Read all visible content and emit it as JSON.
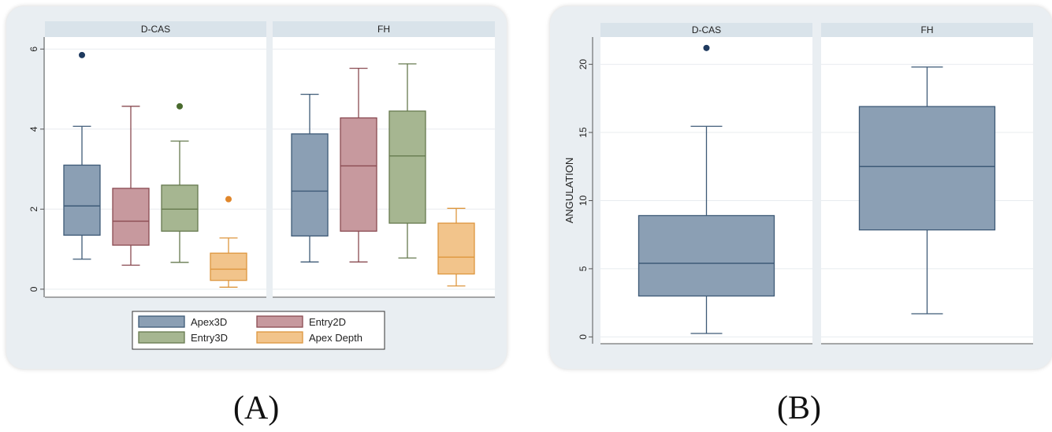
{
  "figure_captions": {
    "a": "(A)",
    "b": "(B)"
  },
  "chart_data": [
    {
      "type": "boxplot",
      "panel": "A",
      "facets": [
        "D-CAS",
        "FH"
      ],
      "ylabel": "",
      "ylim": [
        -0.2,
        6.3
      ],
      "yticks": [
        0,
        2,
        4,
        6
      ],
      "grid": true,
      "legend_position": "bottom",
      "series": [
        {
          "name": "Apex3D",
          "color": "#8b9fb4",
          "stroke": "#3e5a77",
          "outlier_color": "#1f3a5f"
        },
        {
          "name": "Entry2D",
          "color": "#c7999e",
          "stroke": "#8a4b52",
          "outlier_color": "#8a4b52"
        },
        {
          "name": "Entry3D",
          "color": "#a6b691",
          "stroke": "#667a4f",
          "outlier_color": "#4a6b2e"
        },
        {
          "name": "Apex Depth",
          "color": "#f2c48b",
          "stroke": "#dd963e",
          "outlier_color": "#e0862a"
        }
      ],
      "boxes": [
        {
          "facet": "D-CAS",
          "series": "Apex3D",
          "min": 0.75,
          "q1": 1.35,
          "median": 2.08,
          "q3": 3.1,
          "max": 4.07,
          "outliers": [
            5.85
          ]
        },
        {
          "facet": "D-CAS",
          "series": "Entry2D",
          "min": 0.6,
          "q1": 1.1,
          "median": 1.7,
          "q3": 2.52,
          "max": 4.57,
          "outliers": []
        },
        {
          "facet": "D-CAS",
          "series": "Entry3D",
          "min": 0.67,
          "q1": 1.45,
          "median": 2.0,
          "q3": 2.6,
          "max": 3.7,
          "outliers": [
            4.57
          ]
        },
        {
          "facet": "D-CAS",
          "series": "Apex Depth",
          "min": 0.05,
          "q1": 0.22,
          "median": 0.5,
          "q3": 0.9,
          "max": 1.28,
          "outliers": [
            2.25
          ]
        },
        {
          "facet": "FH",
          "series": "Apex3D",
          "min": 0.68,
          "q1": 1.33,
          "median": 2.45,
          "q3": 3.88,
          "max": 4.87,
          "outliers": []
        },
        {
          "facet": "FH",
          "series": "Entry2D",
          "min": 0.68,
          "q1": 1.45,
          "median": 3.08,
          "q3": 4.28,
          "max": 5.52,
          "outliers": []
        },
        {
          "facet": "FH",
          "series": "Entry3D",
          "min": 0.78,
          "q1": 1.65,
          "median": 3.33,
          "q3": 4.45,
          "max": 5.63,
          "outliers": []
        },
        {
          "facet": "FH",
          "series": "Apex Depth",
          "min": 0.08,
          "q1": 0.38,
          "median": 0.8,
          "q3": 1.65,
          "max": 2.02,
          "outliers": []
        }
      ]
    },
    {
      "type": "boxplot",
      "panel": "B",
      "facets": [
        "D-CAS",
        "FH"
      ],
      "ylabel": "ANGULATION",
      "ylim": [
        -0.5,
        22
      ],
      "yticks": [
        0,
        5,
        10,
        15,
        20
      ],
      "grid": true,
      "series": [
        {
          "name": "",
          "color": "#8b9fb4",
          "stroke": "#3e5a77",
          "outlier_color": "#1f3a5f"
        }
      ],
      "boxes": [
        {
          "facet": "D-CAS",
          "min": 0.25,
          "q1": 3.0,
          "median": 5.4,
          "q3": 8.9,
          "max": 15.45,
          "outliers": [
            21.2
          ]
        },
        {
          "facet": "FH",
          "min": 1.7,
          "q1": 7.85,
          "median": 12.5,
          "q3": 16.9,
          "max": 19.8,
          "outliers": []
        }
      ]
    }
  ]
}
